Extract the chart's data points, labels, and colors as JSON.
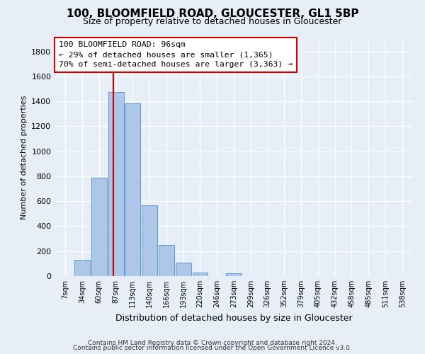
{
  "title": "100, BLOOMFIELD ROAD, GLOUCESTER, GL1 5BP",
  "subtitle": "Size of property relative to detached houses in Gloucester",
  "xlabel": "Distribution of detached houses by size in Gloucester",
  "ylabel": "Number of detached properties",
  "bar_labels": [
    "7sqm",
    "34sqm",
    "60sqm",
    "87sqm",
    "113sqm",
    "140sqm",
    "166sqm",
    "193sqm",
    "220sqm",
    "246sqm",
    "273sqm",
    "299sqm",
    "326sqm",
    "352sqm",
    "379sqm",
    "405sqm",
    "432sqm",
    "458sqm",
    "485sqm",
    "511sqm",
    "538sqm"
  ],
  "bar_values": [
    0,
    130,
    790,
    1475,
    1385,
    570,
    250,
    110,
    30,
    0,
    20,
    0,
    0,
    0,
    0,
    0,
    0,
    0,
    0,
    0,
    0
  ],
  "bar_color": "#aec6e8",
  "bar_edge_color": "#5b9bd5",
  "vline_color": "#cc0000",
  "vline_x_index": 3,
  "ylim": [
    0,
    1900
  ],
  "yticks": [
    0,
    200,
    400,
    600,
    800,
    1000,
    1200,
    1400,
    1600,
    1800
  ],
  "annotation_line1": "100 BLOOMFIELD ROAD: 96sqm",
  "annotation_line2": "← 29% of detached houses are smaller (1,365)",
  "annotation_line3": "70% of semi-detached houses are larger (3,363) →",
  "annotation_box_color": "#ffffff",
  "annotation_box_edge_color": "#cc0000",
  "footer_line1": "Contains HM Land Registry data © Crown copyright and database right 2024.",
  "footer_line2": "Contains public sector information licensed under the Open Government Licence v3.0.",
  "background_color": "#e8eef7",
  "grid_color": "#ffffff"
}
